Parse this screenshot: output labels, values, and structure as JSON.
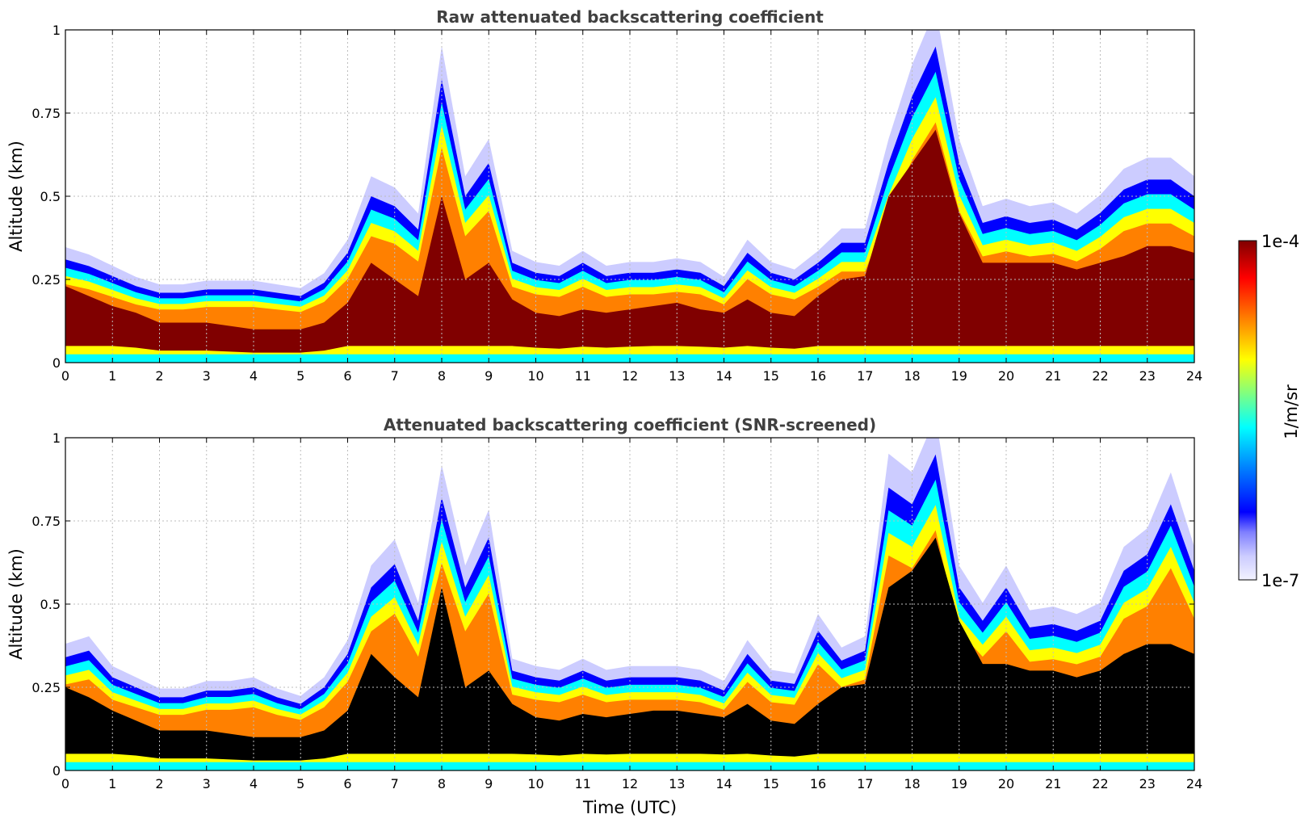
{
  "chart_data": [
    {
      "type": "heatmap",
      "title": "Raw attenuated backscattering coefficient",
      "xlabel": "",
      "ylabel": "Altitude (km)",
      "xlim": [
        0,
        24
      ],
      "ylim": [
        0,
        1
      ],
      "xticks": [
        "0",
        "1",
        "2",
        "3",
        "4",
        "5",
        "6",
        "7",
        "8",
        "9",
        "10",
        "11",
        "12",
        "13",
        "14",
        "15",
        "16",
        "17",
        "18",
        "19",
        "20",
        "21",
        "22",
        "23",
        "24"
      ],
      "yticks": [
        "0",
        "0.25",
        "0.5",
        "0.75",
        "1"
      ],
      "grid": true,
      "screened": false,
      "x": [
        0,
        0.5,
        1,
        1.5,
        2,
        2.5,
        3,
        3.5,
        4,
        4.5,
        5,
        5.5,
        6,
        6.5,
        7,
        7.5,
        8,
        8.5,
        9,
        9.5,
        10,
        10.5,
        11,
        11.5,
        12,
        12.5,
        13,
        13.5,
        14,
        14.5,
        15,
        15.5,
        16,
        16.5,
        17,
        17.5,
        18,
        18.5,
        19,
        19.5,
        20,
        20.5,
        21,
        21.5,
        22,
        22.5,
        23,
        23.5,
        24
      ],
      "layer_top_km": [
        0.31,
        0.29,
        0.26,
        0.23,
        0.21,
        0.21,
        0.22,
        0.22,
        0.22,
        0.21,
        0.2,
        0.24,
        0.33,
        0.5,
        0.47,
        0.4,
        0.85,
        0.5,
        0.6,
        0.3,
        0.27,
        0.26,
        0.3,
        0.26,
        0.27,
        0.27,
        0.28,
        0.27,
        0.23,
        0.33,
        0.27,
        0.25,
        0.3,
        0.36,
        0.36,
        0.6,
        0.8,
        0.95,
        0.6,
        0.42,
        0.44,
        0.42,
        0.43,
        0.4,
        0.45,
        0.52,
        0.55,
        0.55,
        0.5
      ],
      "core_top_km": [
        0.23,
        0.2,
        0.17,
        0.15,
        0.12,
        0.12,
        0.12,
        0.11,
        0.1,
        0.1,
        0.1,
        0.12,
        0.18,
        0.3,
        0.25,
        0.2,
        0.5,
        0.25,
        0.3,
        0.19,
        0.15,
        0.14,
        0.16,
        0.15,
        0.16,
        0.17,
        0.18,
        0.16,
        0.15,
        0.19,
        0.15,
        0.14,
        0.2,
        0.25,
        0.26,
        0.5,
        0.6,
        0.7,
        0.45,
        0.3,
        0.3,
        0.3,
        0.3,
        0.28,
        0.3,
        0.32,
        0.35,
        0.35,
        0.33
      ]
    },
    {
      "type": "heatmap",
      "title": "Attenuated backscattering coefficient (SNR-screened)",
      "xlabel": "Time (UTC)",
      "ylabel": "Altitude (km)",
      "xlim": [
        0,
        24
      ],
      "ylim": [
        0,
        1
      ],
      "xticks": [
        "0",
        "1",
        "2",
        "3",
        "4",
        "5",
        "6",
        "7",
        "8",
        "9",
        "10",
        "11",
        "12",
        "13",
        "14",
        "15",
        "16",
        "17",
        "18",
        "19",
        "20",
        "21",
        "22",
        "23",
        "24"
      ],
      "yticks": [
        "0",
        "0.25",
        "0.5",
        "0.75",
        "1"
      ],
      "grid": true,
      "screened": true,
      "x": [
        0,
        0.5,
        1,
        1.5,
        2,
        2.5,
        3,
        3.5,
        4,
        4.5,
        5,
        5.5,
        6,
        6.5,
        7,
        7.5,
        8,
        8.5,
        9,
        9.5,
        10,
        10.5,
        11,
        11.5,
        12,
        12.5,
        13,
        13.5,
        14,
        14.5,
        15,
        15.5,
        16,
        16.5,
        17,
        17.5,
        18,
        18.5,
        19,
        19.5,
        20,
        20.5,
        21,
        21.5,
        22,
        22.5,
        23,
        23.5,
        24
      ],
      "layer_top_km": [
        0.34,
        0.36,
        0.28,
        0.25,
        0.22,
        0.22,
        0.24,
        0.24,
        0.25,
        0.22,
        0.2,
        0.25,
        0.35,
        0.55,
        0.62,
        0.45,
        0.82,
        0.55,
        0.7,
        0.3,
        0.28,
        0.27,
        0.3,
        0.27,
        0.28,
        0.28,
        0.28,
        0.27,
        0.24,
        0.35,
        0.27,
        0.26,
        0.42,
        0.33,
        0.36,
        0.85,
        0.8,
        0.95,
        0.55,
        0.45,
        0.55,
        0.43,
        0.44,
        0.42,
        0.45,
        0.6,
        0.65,
        0.8,
        0.6
      ],
      "core_top_km": [
        0.25,
        0.22,
        0.18,
        0.15,
        0.12,
        0.12,
        0.12,
        0.11,
        0.1,
        0.1,
        0.1,
        0.12,
        0.18,
        0.35,
        0.28,
        0.22,
        0.55,
        0.25,
        0.3,
        0.2,
        0.16,
        0.15,
        0.17,
        0.16,
        0.17,
        0.18,
        0.18,
        0.17,
        0.16,
        0.2,
        0.15,
        0.14,
        0.2,
        0.25,
        0.26,
        0.55,
        0.6,
        0.7,
        0.45,
        0.32,
        0.32,
        0.3,
        0.3,
        0.28,
        0.3,
        0.35,
        0.38,
        0.38,
        0.35
      ]
    }
  ],
  "colorbar": {
    "label": "1/m/sr",
    "max_label": "1e-4",
    "min_label": "1e-7",
    "colors": [
      "#f2f2ff",
      "#ccccff",
      "#8080ff",
      "#0000ff",
      "#0080ff",
      "#00ffff",
      "#80ff80",
      "#ffff00",
      "#ff8000",
      "#ff0000",
      "#800000"
    ]
  }
}
